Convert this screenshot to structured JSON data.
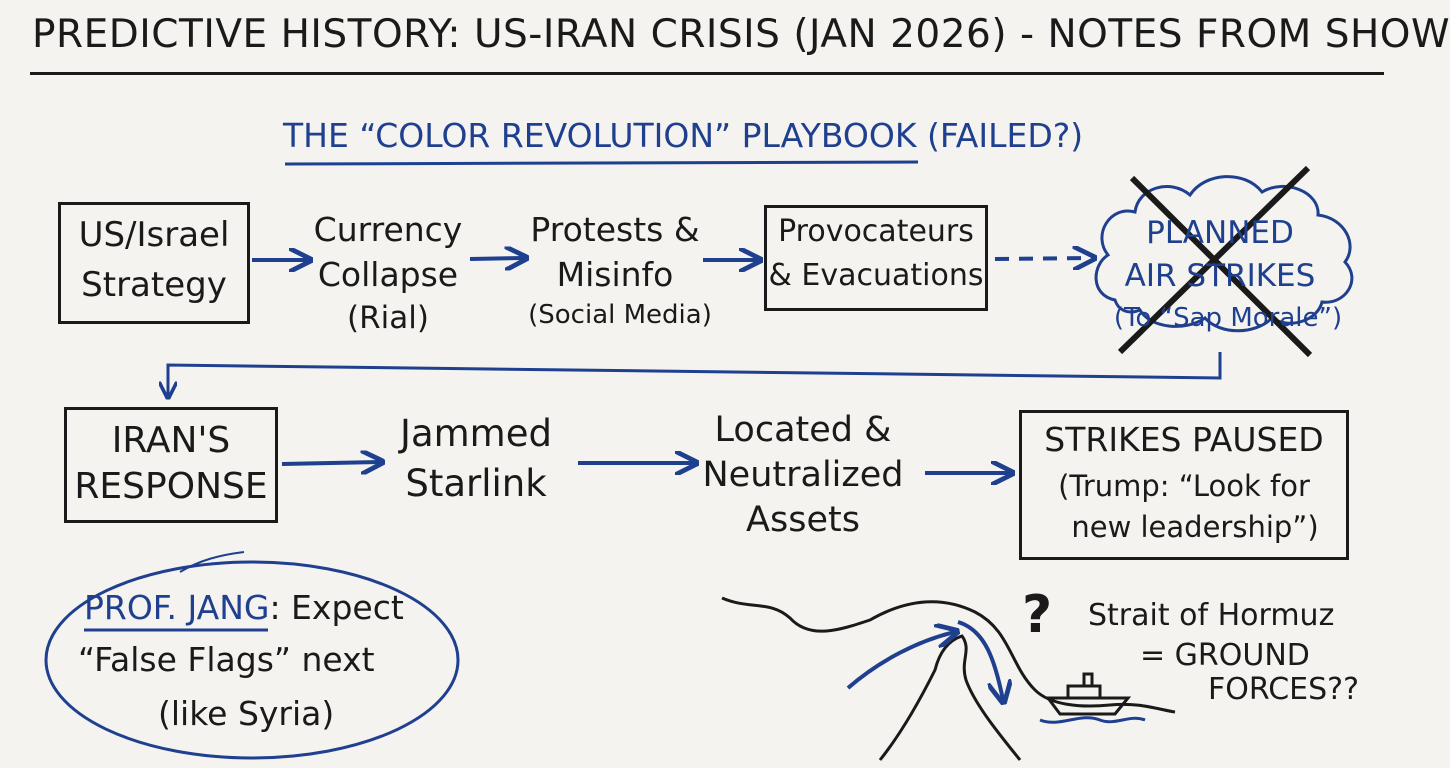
{
  "header": {
    "title": "PREDICTIVE HISTORY: US-IRAN CRISIS (JAN 2026) - NOTES FROM SHOW"
  },
  "playbook": {
    "heading": "THE “COLOR REVOLUTION” PLAYBOOK (FAILED?)",
    "steps": [
      {
        "lines": [
          "US/Israel",
          "Strategy"
        ]
      },
      {
        "lines": [
          "Currency",
          "Collapse",
          "(Rial)"
        ]
      },
      {
        "lines": [
          "Protests &",
          "Misinfo",
          "(Social Media)"
        ]
      },
      {
        "lines": [
          "Provocateurs",
          "& Evacuations"
        ]
      },
      {
        "lines": [
          "PLANNED",
          "AIR STRIKES",
          "(To “Sap Morale”)"
        ]
      }
    ]
  },
  "response": {
    "steps": [
      {
        "lines": [
          "IRAN'S",
          "RESPONSE"
        ]
      },
      {
        "lines": [
          "Jammed",
          "Starlink"
        ]
      },
      {
        "lines": [
          "Located &",
          "Neutralized",
          "Assets"
        ]
      },
      {
        "lines": [
          "STRIKES PAUSED",
          "(Trump: “Look for",
          "new leadership”)"
        ]
      }
    ]
  },
  "note": {
    "name": "PROF. JANG",
    "lines": [
      ": Expect",
      "“False Flags” next",
      "(like Syria)"
    ]
  },
  "hormuz": {
    "question": "?",
    "lines": [
      "Strait of Hormuz",
      "= GROUND",
      "FORCES??"
    ]
  },
  "colors": {
    "ink": "#1a1a1a",
    "blue": "#1f3f8f",
    "board": "#f4f3ef"
  }
}
